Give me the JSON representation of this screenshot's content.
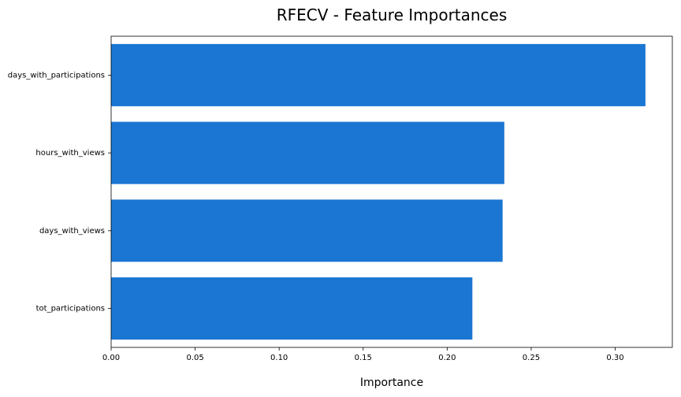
{
  "chart_data": {
    "type": "bar",
    "orientation": "horizontal",
    "title": "RFECV - Feature Importances",
    "xlabel": "Importance",
    "ylabel": "",
    "categories": [
      "days_with_participations",
      "hours_with_views",
      "days_with_views",
      "tot_participations"
    ],
    "values": [
      0.318,
      0.234,
      0.233,
      0.215
    ],
    "xlim": [
      0.0,
      0.334
    ],
    "xticks": [
      "0.00",
      "0.05",
      "0.10",
      "0.15",
      "0.20",
      "0.25",
      "0.30"
    ],
    "bar_color": "#1a76d2",
    "grid": false,
    "legend": "none"
  }
}
